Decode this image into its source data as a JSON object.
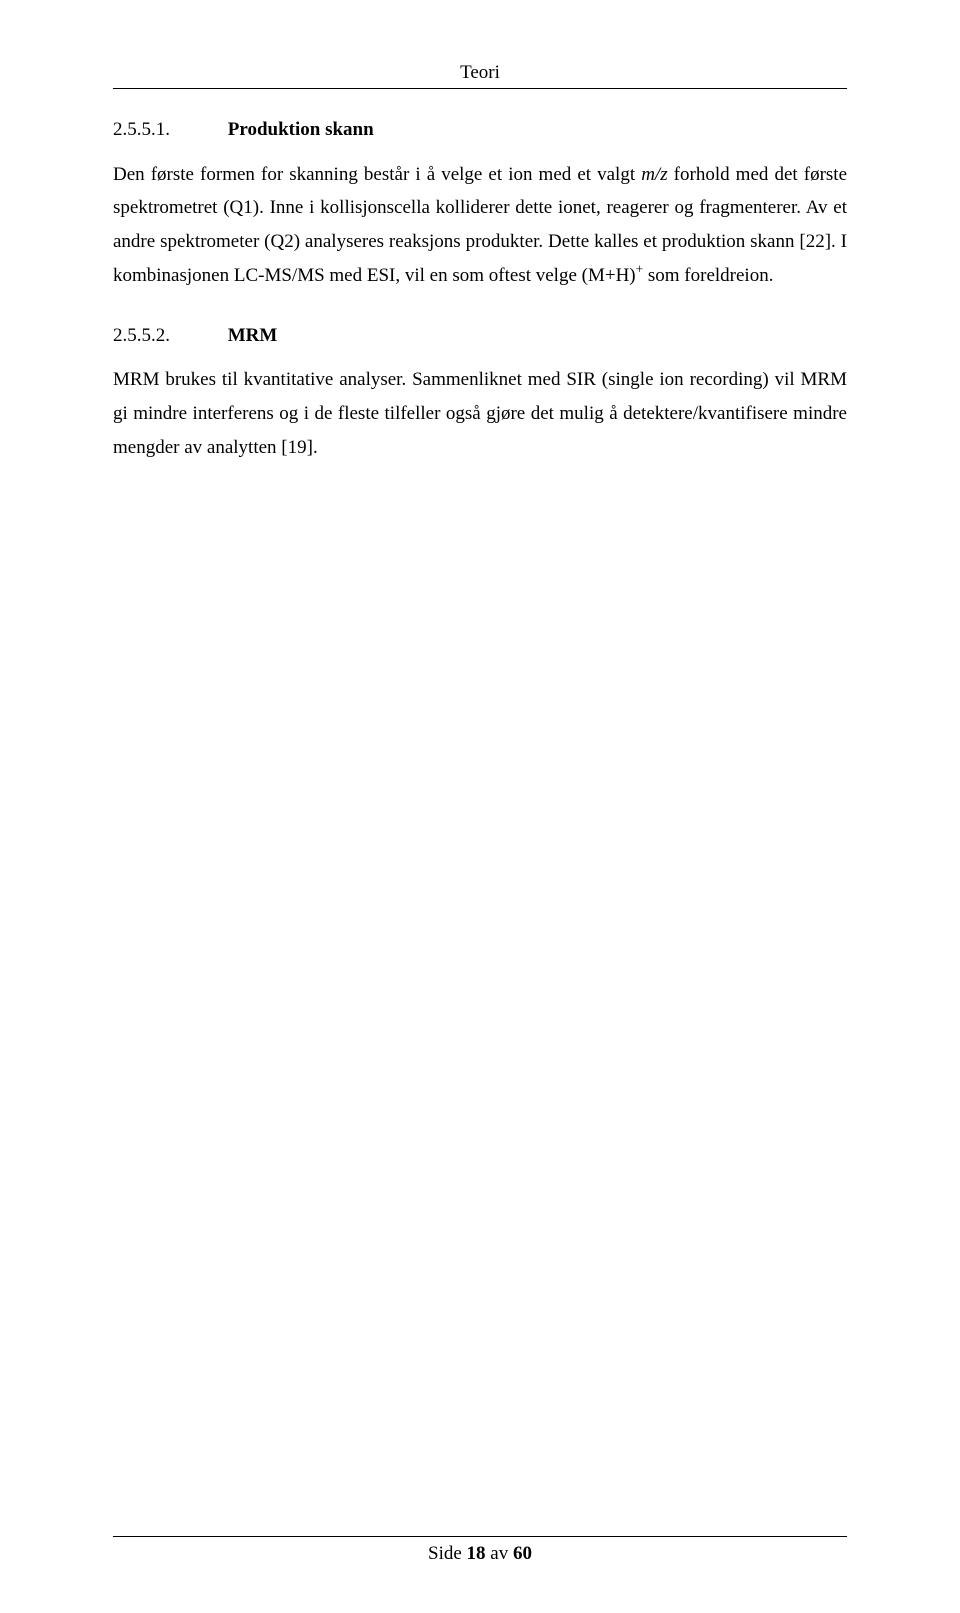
{
  "running_head": "Teori",
  "section1": {
    "number": "2.5.5.1.",
    "title": "Produktion skann",
    "para_part1": "Den første formen for skanning består i å velge et ion med et valgt ",
    "para_mz": "m/z",
    "para_part2": " forhold med det første spektrometret (Q1). Inne i kollisjonscella kolliderer dette ionet, reagerer og fragmenterer. Av et andre spektrometer (Q2) analyseres reaksjons produkter. Dette kalles et produktion skann [22]. I kombinasjonen LC-MS/MS med ESI, vil en som oftest velge (M+H)",
    "para_sup": "+",
    "para_part3": " som foreldreion."
  },
  "section2": {
    "number": "2.5.5.2.",
    "title": "MRM",
    "para": "MRM brukes til kvantitative analyser. Sammenliknet med SIR (single ion recording) vil MRM gi mindre interferens og i de fleste tilfeller også gjøre det mulig å detektere/kvantifisere mindre mengder av analytten [19]."
  },
  "footer": {
    "pre": "Side ",
    "n": "18",
    "mid": " av ",
    "total": "60"
  }
}
